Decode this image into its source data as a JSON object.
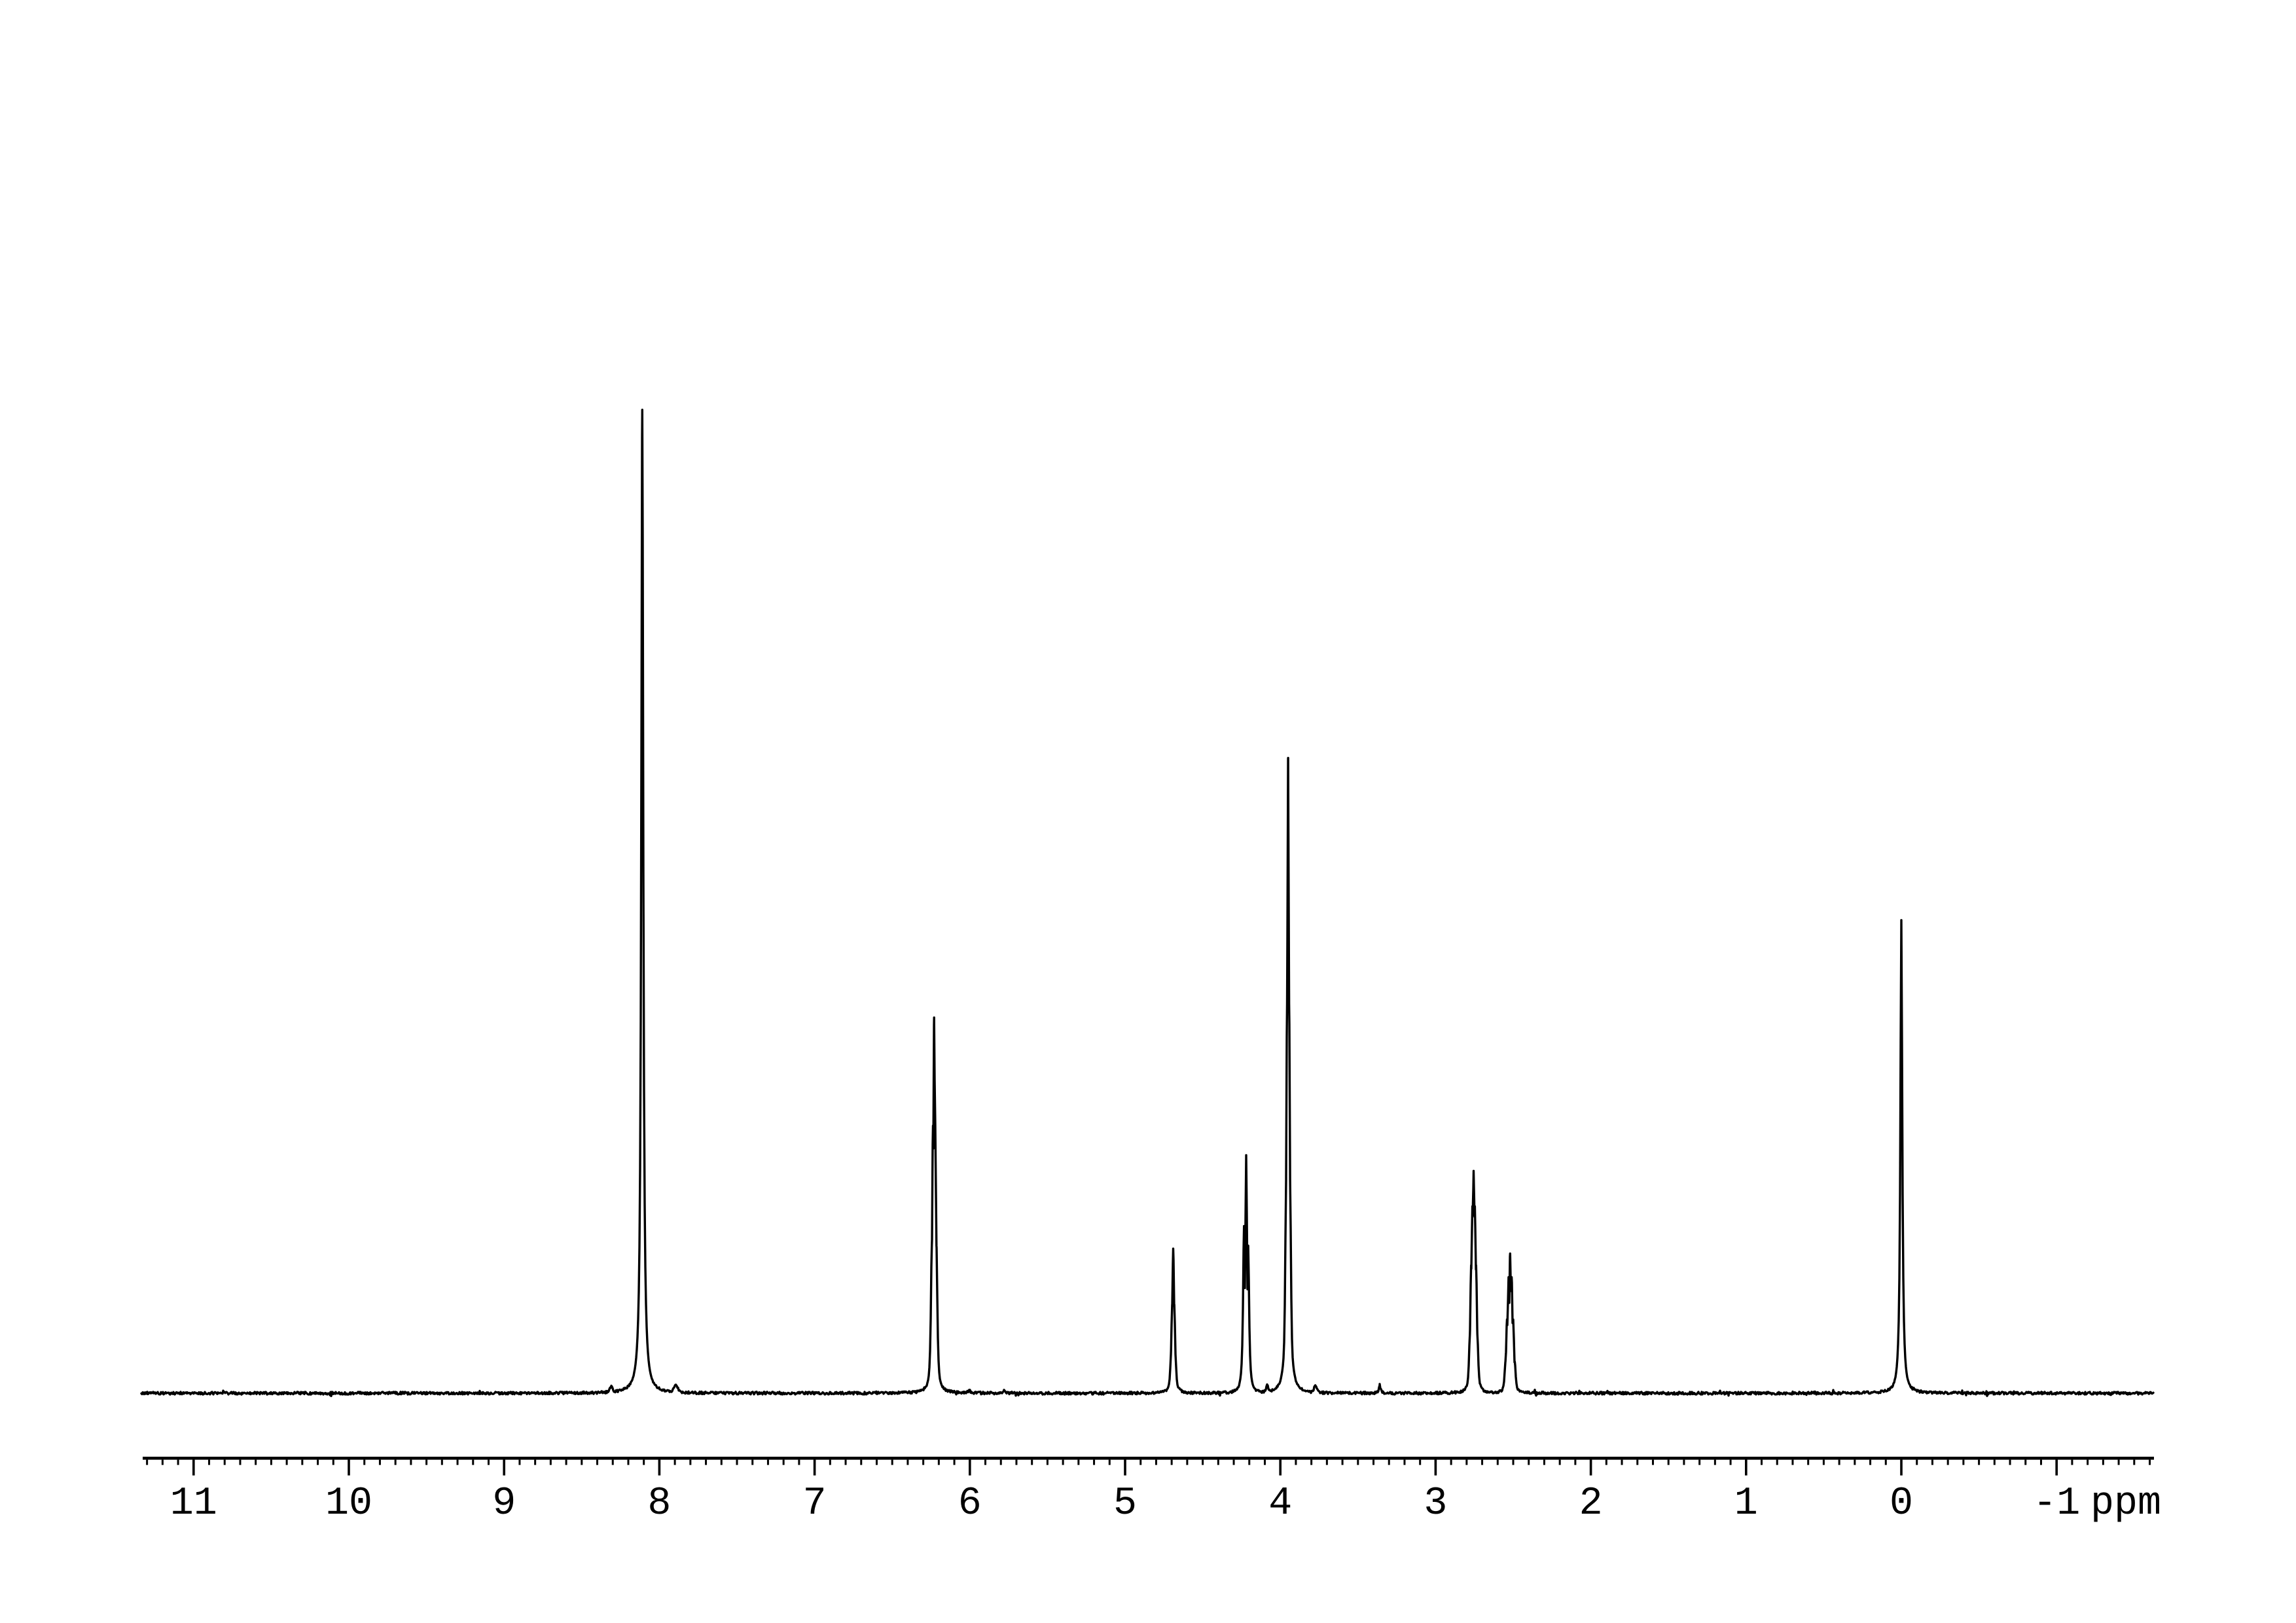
{
  "figure": {
    "background_color": "#ffffff",
    "trace_color": "#000000",
    "axis_color": "#000000"
  },
  "chart_data": {
    "type": "line",
    "kind": "1H NMR spectrum",
    "title": "",
    "xlabel": "ppm",
    "ylabel": "",
    "x_axis": {
      "unit_label": "ppm",
      "direction": "reversed",
      "range_ppm": [
        11.33,
        -1.63
      ],
      "major_ticks": [
        11,
        10,
        9,
        8,
        7,
        6,
        5,
        4,
        3,
        2,
        1,
        0,
        -1
      ],
      "major_tick_labels": [
        "11",
        "10",
        "9",
        "8",
        "7",
        "6",
        "5",
        "4",
        "3",
        "2",
        "1",
        "0",
        "-1"
      ],
      "minor_tick_step": 0.1,
      "grid": false
    },
    "y_axis": {
      "visible": false,
      "normalization": "peak heights relative to tallest peak = 1.0"
    },
    "peaks": [
      {
        "ppm": 8.11,
        "rel_height": 1.0,
        "shape": "singlet"
      },
      {
        "ppm": 6.23,
        "rel_height": 0.38,
        "shape": "multiplet"
      },
      {
        "ppm": 4.69,
        "rel_height": 0.15,
        "shape": "multiplet"
      },
      {
        "ppm": 4.22,
        "rel_height": 0.24,
        "shape": "doublet"
      },
      {
        "ppm": 3.95,
        "rel_height": 0.65,
        "shape": "multiplet"
      },
      {
        "ppm": 3.36,
        "rel_height": 0.01,
        "shape": "minor singlet"
      },
      {
        "ppm": 2.75,
        "rel_height": 0.23,
        "shape": "multiplet"
      },
      {
        "ppm": 2.52,
        "rel_height": 0.14,
        "shape": "multiplet"
      },
      {
        "ppm": 0.0,
        "rel_height": 0.48,
        "shape": "reference singlet"
      }
    ],
    "components": [
      {
        "ppm": 8.31,
        "h": 0.007,
        "w": 3.0
      },
      {
        "ppm": 8.11,
        "h": 1.0,
        "w": 1.8
      },
      {
        "ppm": 7.893,
        "h": 0.009,
        "w": 3.5
      },
      {
        "ppm": 6.245,
        "h": 0.15,
        "w": 1.7
      },
      {
        "ppm": 6.2375,
        "h": 0.272,
        "w": 1.7
      },
      {
        "ppm": 6.23,
        "h": 0.382,
        "w": 1.7
      },
      {
        "ppm": 6.2225,
        "h": 0.272,
        "w": 1.7
      },
      {
        "ppm": 6.215,
        "h": 0.15,
        "w": 1.7
      },
      {
        "ppm": 6.005,
        "h": 0.0027,
        "w": 3.0
      },
      {
        "ppm": 5.78,
        "h": 0.0023,
        "w": 3.0
      },
      {
        "ppm": 4.704,
        "h": 0.04,
        "w": 1.6
      },
      {
        "ppm": 4.697,
        "h": 0.09,
        "w": 1.6
      },
      {
        "ppm": 4.69,
        "h": 0.147,
        "w": 1.6
      },
      {
        "ppm": 4.683,
        "h": 0.09,
        "w": 1.6
      },
      {
        "ppm": 4.676,
        "h": 0.04,
        "w": 1.6
      },
      {
        "ppm": 4.234,
        "h": 0.17,
        "w": 1.7
      },
      {
        "ppm": 4.22,
        "h": 0.242,
        "w": 1.7
      },
      {
        "ppm": 4.207,
        "h": 0.15,
        "w": 1.7
      },
      {
        "ppm": 4.085,
        "h": 0.008,
        "w": 2.5
      },
      {
        "ppm": 3.963,
        "h": 0.21,
        "w": 1.7
      },
      {
        "ppm": 3.9565,
        "h": 0.396,
        "w": 1.7
      },
      {
        "ppm": 3.95,
        "h": 0.646,
        "w": 1.7
      },
      {
        "ppm": 3.9435,
        "h": 0.396,
        "w": 1.7
      },
      {
        "ppm": 3.937,
        "h": 0.21,
        "w": 1.7
      },
      {
        "ppm": 3.775,
        "h": 0.008,
        "w": 2.5
      },
      {
        "ppm": 3.36,
        "h": 0.0085,
        "w": 1.5
      },
      {
        "ppm": 2.779,
        "h": 0.06,
        "w": 1.7
      },
      {
        "ppm": 2.771,
        "h": 0.13,
        "w": 1.7
      },
      {
        "ppm": 2.763,
        "h": 0.19,
        "w": 1.7
      },
      {
        "ppm": 2.755,
        "h": 0.226,
        "w": 1.7
      },
      {
        "ppm": 2.747,
        "h": 0.19,
        "w": 1.7
      },
      {
        "ppm": 2.739,
        "h": 0.13,
        "w": 1.7
      },
      {
        "ppm": 2.731,
        "h": 0.06,
        "w": 1.7
      },
      {
        "ppm": 2.55,
        "h": 0.032,
        "w": 1.7
      },
      {
        "ppm": 2.54,
        "h": 0.075,
        "w": 1.7
      },
      {
        "ppm": 2.53,
        "h": 0.118,
        "w": 1.7
      },
      {
        "ppm": 2.52,
        "h": 0.142,
        "w": 1.7
      },
      {
        "ppm": 2.51,
        "h": 0.118,
        "w": 1.7
      },
      {
        "ppm": 2.5,
        "h": 0.075,
        "w": 1.7
      },
      {
        "ppm": 2.49,
        "h": 0.032,
        "w": 1.7
      },
      {
        "ppm": 0.0,
        "h": 0.481,
        "w": 1.7
      }
    ],
    "noise_amplitude_rel": 0.0009
  }
}
